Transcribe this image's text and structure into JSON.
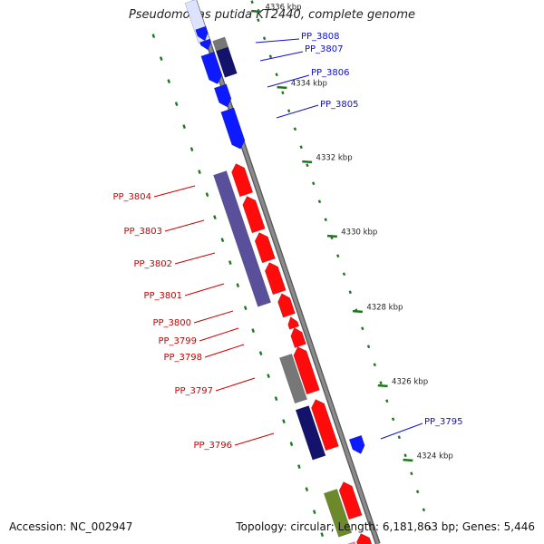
{
  "header": {
    "title": "Pseudomonas putida KT2440, complete genome"
  },
  "footer": {
    "accession": "Accession: NC_002947",
    "topology": "Topology: circular; Length: 6,181,863 bp; Genes: 5,446"
  },
  "colors": {
    "backbone": "#8a8a8a",
    "blue_gene": "#0d1aff",
    "dark_blue_gene": "#13136e",
    "red_gene": "#ff0b0b",
    "purple_gene": "#5a4f9b",
    "gray_gene": "#777777",
    "green_gene": "#6d8a2a",
    "tick_green": "#1a7a1a",
    "label_red": "#cc0000",
    "label_blue": "#1010cc"
  },
  "scale_labels": [
    "4336 kbp",
    "4334 kbp",
    "4332 kbp",
    "4330 kbp",
    "4328 kbp",
    "4326 kbp",
    "4324 kbp"
  ],
  "gene_labels": [
    {
      "name": "PP_3808",
      "strand": "minus"
    },
    {
      "name": "PP_3807",
      "strand": "minus"
    },
    {
      "name": "PP_3806",
      "strand": "minus"
    },
    {
      "name": "PP_3805",
      "strand": "minus"
    },
    {
      "name": "PP_3804",
      "strand": "plus"
    },
    {
      "name": "PP_3803",
      "strand": "plus"
    },
    {
      "name": "PP_3802",
      "strand": "plus"
    },
    {
      "name": "PP_3801",
      "strand": "plus"
    },
    {
      "name": "PP_3800",
      "strand": "plus"
    },
    {
      "name": "PP_3799",
      "strand": "plus"
    },
    {
      "name": "PP_3798",
      "strand": "plus"
    },
    {
      "name": "PP_3797",
      "strand": "plus"
    },
    {
      "name": "PP_3796",
      "strand": "plus"
    },
    {
      "name": "PP_3795",
      "strand": "minus"
    }
  ]
}
